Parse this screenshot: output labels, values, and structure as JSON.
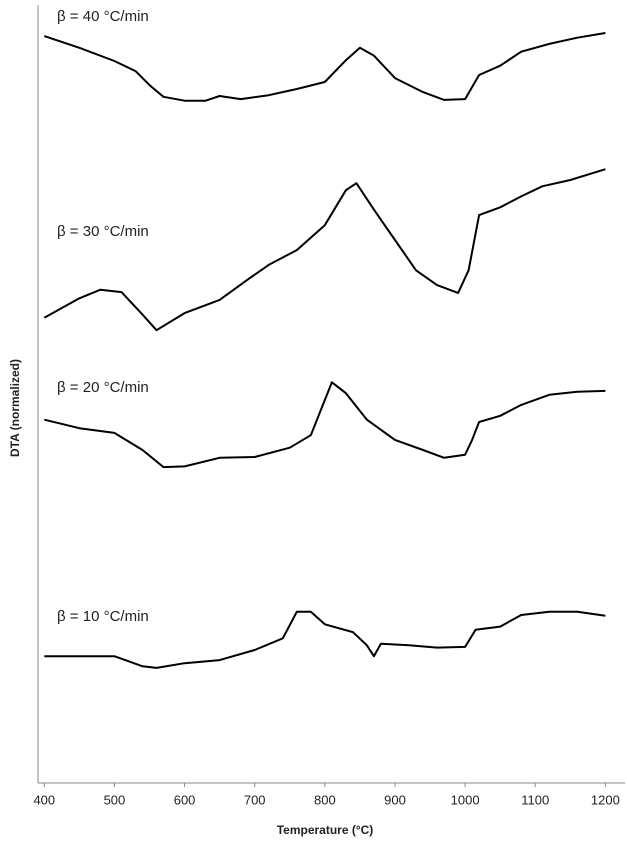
{
  "chart_data": {
    "type": "line",
    "x_label": "Temperature (°C)",
    "y_label": "DTA (normalized)",
    "xlim": [
      391,
      1228
    ],
    "ylim": [
      0,
      100
    ],
    "xticks": [
      400,
      500,
      600,
      700,
      800,
      900,
      1000,
      1100,
      1200
    ],
    "series": [
      {
        "name": "β = 40 °C/min",
        "color": "#000000",
        "x": [
          400,
          450,
          500,
          530,
          550,
          570,
          600,
          630,
          650,
          680,
          720,
          760,
          800,
          830,
          850,
          870,
          900,
          940,
          970,
          1000,
          1020,
          1050,
          1080,
          1120,
          1160,
          1200
        ],
        "values": [
          96.0,
          94.5,
          92.8,
          91.5,
          89.7,
          88.2,
          87.7,
          87.7,
          88.3,
          87.9,
          88.4,
          89.2,
          90.1,
          92.9,
          94.5,
          93.5,
          90.6,
          88.8,
          87.8,
          87.9,
          91.0,
          92.2,
          94.0,
          95.0,
          95.8,
          96.4
        ]
      },
      {
        "name": "β = 30 °C/min",
        "color": "#000000",
        "x": [
          400,
          450,
          480,
          510,
          540,
          560,
          600,
          650,
          690,
          720,
          760,
          800,
          830,
          845,
          870,
          900,
          930,
          960,
          990,
          1005,
          1020,
          1050,
          1080,
          1110,
          1150,
          1200
        ],
        "values": [
          59.8,
          62.3,
          63.4,
          63.1,
          60.2,
          58.2,
          60.4,
          62.1,
          64.7,
          66.6,
          68.5,
          71.7,
          76.2,
          77.1,
          73.7,
          69.8,
          65.9,
          64.0,
          63.0,
          65.9,
          73.0,
          74.0,
          75.4,
          76.7,
          77.5,
          78.9
        ]
      },
      {
        "name": "β = 20 °C/min",
        "color": "#000000",
        "x": [
          400,
          450,
          500,
          540,
          570,
          600,
          650,
          700,
          750,
          780,
          810,
          830,
          860,
          900,
          940,
          970,
          1000,
          1010,
          1020,
          1050,
          1080,
          1120,
          1160,
          1200
        ],
        "values": [
          46.7,
          45.6,
          45.0,
          42.8,
          40.6,
          40.7,
          41.8,
          41.9,
          43.1,
          44.7,
          51.5,
          50.1,
          46.7,
          44.1,
          42.8,
          41.8,
          42.2,
          44.1,
          46.4,
          47.2,
          48.6,
          49.9,
          50.3,
          50.4
        ]
      },
      {
        "name": "β = 10 °C/min",
        "color": "#000000",
        "x": [
          400,
          450,
          500,
          540,
          560,
          600,
          650,
          700,
          740,
          760,
          780,
          800,
          840,
          860,
          870,
          880,
          920,
          960,
          1000,
          1015,
          1050,
          1080,
          1120,
          1160,
          1200
        ],
        "values": [
          16.3,
          16.3,
          16.3,
          15.0,
          14.8,
          15.4,
          15.8,
          17.1,
          18.6,
          22.0,
          22.0,
          20.4,
          19.4,
          17.7,
          16.3,
          17.9,
          17.7,
          17.4,
          17.5,
          19.7,
          20.1,
          21.6,
          22.0,
          22.0,
          21.5
        ]
      }
    ]
  }
}
